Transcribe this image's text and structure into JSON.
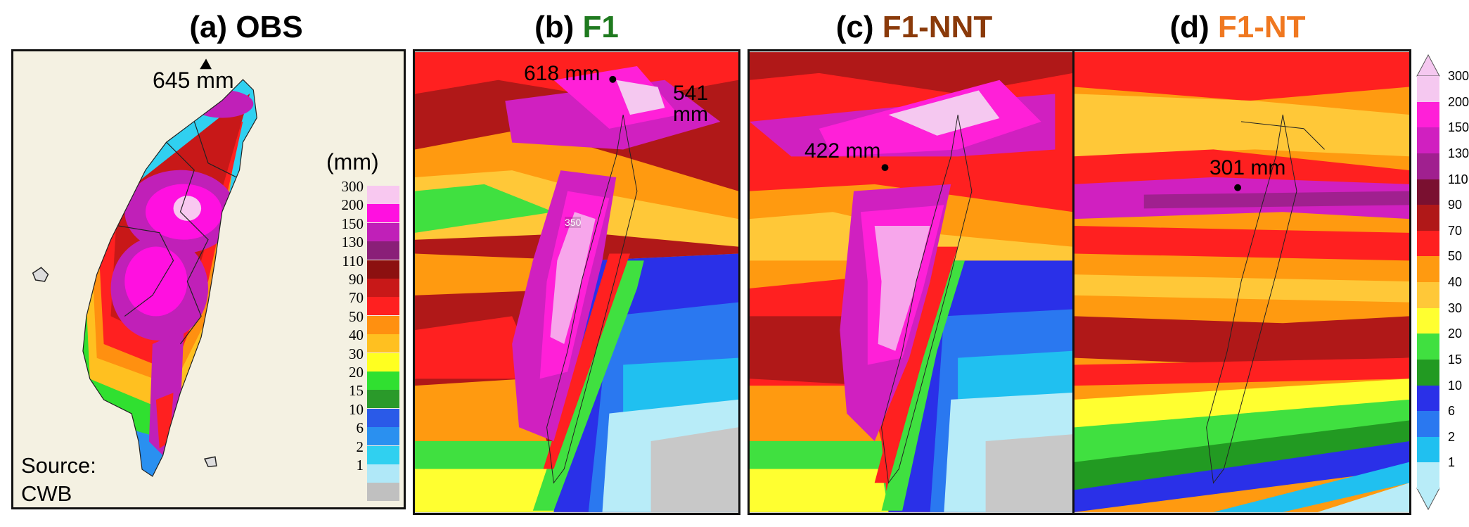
{
  "titles": [
    {
      "prefix": "(a)",
      "name": "OBS",
      "color": "#000000"
    },
    {
      "prefix": "(b)",
      "name": "F1",
      "color": "#1f7a1f"
    },
    {
      "prefix": "(c)",
      "name": "F1-NNT",
      "color": "#8a3a0a"
    },
    {
      "prefix": "(d)",
      "name": "F1-NT",
      "color": "#f07820"
    }
  ],
  "annotations": {
    "a_max": "645 mm",
    "b_max": "618 mm",
    "b_second_value": "541",
    "b_second_unit": "mm",
    "c_max": "422 mm",
    "d_max": "301 mm",
    "contour_label": "350"
  },
  "source": {
    "line1": "Source:",
    "line2": "CWB"
  },
  "obs_legend": {
    "unit": "(mm)",
    "levels": [
      {
        "label": "300",
        "color": "#f8c8f0"
      },
      {
        "label": "200",
        "color": "#ff10e0"
      },
      {
        "label": "150",
        "color": "#c020b8"
      },
      {
        "label": "130",
        "color": "#8a1f78"
      },
      {
        "label": "110",
        "color": "#8c1010"
      },
      {
        "label": "90",
        "color": "#c81818"
      },
      {
        "label": "70",
        "color": "#ff2020"
      },
      {
        "label": "50",
        "color": "#ff9010"
      },
      {
        "label": "40",
        "color": "#ffc020"
      },
      {
        "label": "30",
        "color": "#ffff20"
      },
      {
        "label": "20",
        "color": "#30e030"
      },
      {
        "label": "15",
        "color": "#2a9a2a"
      },
      {
        "label": "10",
        "color": "#2a5ae8"
      },
      {
        "label": "6",
        "color": "#2a90f0"
      },
      {
        "label": "2",
        "color": "#30d0f0"
      },
      {
        "label": "1",
        "color": "#b0e8f8"
      },
      {
        "label": "",
        "color": "#c0c0c0"
      }
    ]
  },
  "colorbar": {
    "labels": [
      "300",
      "200",
      "150",
      "130",
      "110",
      "90",
      "70",
      "50",
      "40",
      "30",
      "20",
      "15",
      "10",
      "6",
      "2",
      "1"
    ],
    "colors": [
      "#f5c8f0",
      "#ff20d8",
      "#d020c0",
      "#a0208f",
      "#7a1030",
      "#b01818",
      "#ff2020",
      "#ff9a10",
      "#ffc838",
      "#ffff30",
      "#40e040",
      "#229a22",
      "#2a30e8",
      "#2a78f0",
      "#20c0f0",
      "#b8ecf8"
    ]
  }
}
